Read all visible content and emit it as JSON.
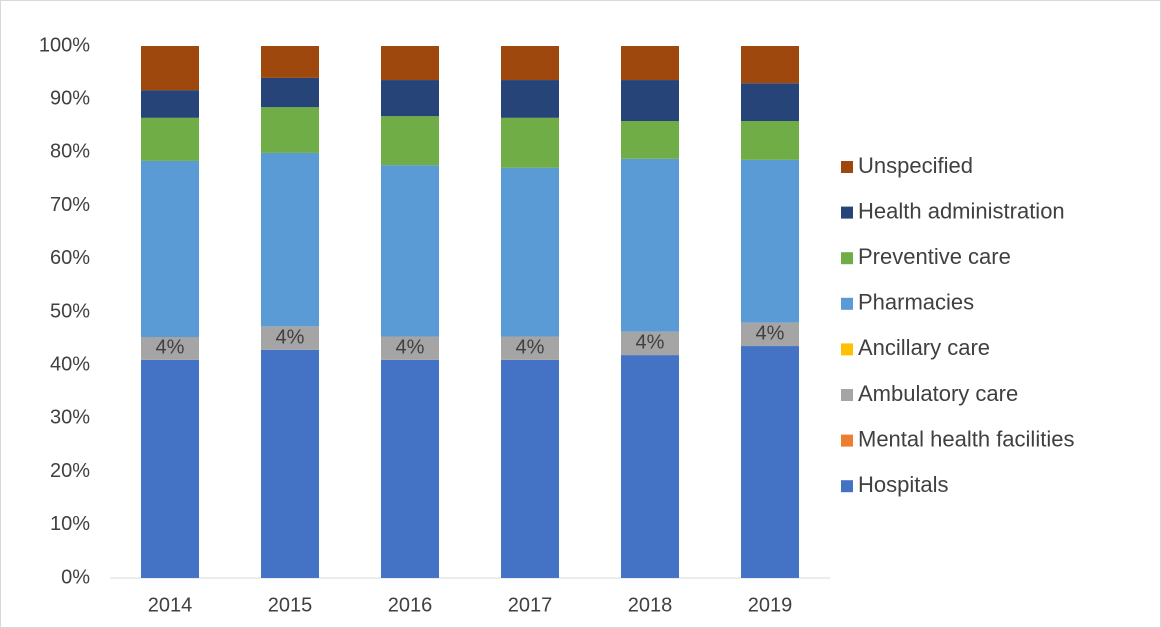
{
  "chart_data": {
    "type": "stacked_bar",
    "categories": [
      "2014",
      "2015",
      "2016",
      "2017",
      "2018",
      "2019"
    ],
    "series": [
      {
        "name": "Hospitals",
        "color": "#4472c4",
        "values": [
          41.0,
          42.9,
          41.0,
          41.0,
          41.9,
          43.6
        ]
      },
      {
        "name": "Mental health facilities",
        "color": "#ed7d31",
        "values": [
          0,
          0,
          0,
          0,
          0,
          0
        ]
      },
      {
        "name": "Ambulatory care",
        "color": "#a5a5a5",
        "values": [
          4.3,
          4.4,
          4.4,
          4.4,
          4.4,
          4.4
        ],
        "value_labels": [
          "4%",
          "4%",
          "4%",
          "4%",
          "4%",
          "4%"
        ]
      },
      {
        "name": "Ancillary care",
        "color": "#ffc000",
        "values": [
          0,
          0,
          0,
          0,
          0,
          0
        ]
      },
      {
        "name": "Pharmacies",
        "color": "#5b9bd5",
        "values": [
          33.1,
          32.6,
          32.2,
          31.7,
          32.5,
          30.6
        ]
      },
      {
        "name": "Preventive care",
        "color": "#70ad47",
        "values": [
          8.1,
          8.6,
          9.2,
          9.4,
          7.1,
          7.3
        ]
      },
      {
        "name": "Health administration",
        "color": "#264478",
        "values": [
          5.2,
          5.5,
          6.8,
          7.1,
          7.7,
          7.1
        ]
      },
      {
        "name": "Unspecified",
        "color": "#9e480e",
        "values": [
          8.3,
          6.0,
          6.4,
          6.4,
          6.4,
          7.0
        ]
      }
    ],
    "ylim": [
      0,
      100
    ],
    "yticks": [
      {
        "value": 0,
        "label": "0%"
      },
      {
        "value": 10,
        "label": "10%"
      },
      {
        "value": 20,
        "label": "20%"
      },
      {
        "value": 30,
        "label": "30%"
      },
      {
        "value": 40,
        "label": "40%"
      },
      {
        "value": 50,
        "label": "50%"
      },
      {
        "value": 60,
        "label": "60%"
      },
      {
        "value": 70,
        "label": "70%"
      },
      {
        "value": 80,
        "label": "80%"
      },
      {
        "value": 90,
        "label": "90%"
      },
      {
        "value": 100,
        "label": "100%"
      }
    ],
    "legend": "right"
  }
}
